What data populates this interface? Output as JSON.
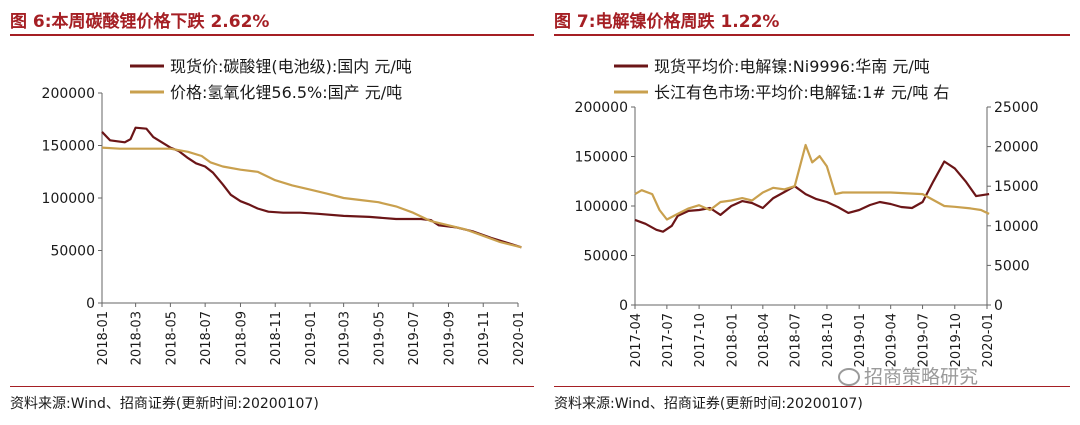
{
  "left": {
    "title": "图 6:本周碳酸锂价格下跌 2.62%",
    "source": "资料来源:Wind、招商证券(更新时间:20200107)"
  },
  "right": {
    "title": "图 7:电解镍价格周跌 1.22%",
    "source": "资料来源:Wind、招商证券(更新时间:20200107)"
  },
  "watermark": "招商策略研究",
  "chart_data": [
    {
      "type": "line",
      "title": "图 6:本周碳酸锂价格下跌 2.62%",
      "ylim": [
        0,
        200000
      ],
      "yticks": [
        0,
        50000,
        100000,
        150000,
        200000
      ],
      "xlim": [
        "2018-01",
        "2020-01"
      ],
      "xticks": [
        "2018-01",
        "2018-03",
        "2018-05",
        "2018-07",
        "2018-09",
        "2018-11",
        "2019-01",
        "2019-03",
        "2019-05",
        "2019-07",
        "2019-09",
        "2019-11",
        "2020-01"
      ],
      "legend_position": "top-left",
      "grid": false,
      "series": [
        {
          "name": "现货价:碳酸锂(电池级):国内 元/吨",
          "color": "#6b1517",
          "points": [
            [
              "2018-01-01",
              163000
            ],
            [
              "2018-01-15",
              155000
            ],
            [
              "2018-02-10",
              153000
            ],
            [
              "2018-02-20",
              156000
            ],
            [
              "2018-03-01",
              167000
            ],
            [
              "2018-03-20",
              166000
            ],
            [
              "2018-04-01",
              158000
            ],
            [
              "2018-05-01",
              148000
            ],
            [
              "2018-05-15",
              145000
            ],
            [
              "2018-06-01",
              138000
            ],
            [
              "2018-06-15",
              133000
            ],
            [
              "2018-07-01",
              130000
            ],
            [
              "2018-07-15",
              124000
            ],
            [
              "2018-08-01",
              113000
            ],
            [
              "2018-08-15",
              103000
            ],
            [
              "2018-09-01",
              97000
            ],
            [
              "2018-09-15",
              94000
            ],
            [
              "2018-10-01",
              90000
            ],
            [
              "2018-10-20",
              87000
            ],
            [
              "2018-11-15",
              86000
            ],
            [
              "2018-12-15",
              86000
            ],
            [
              "2019-01-15",
              85000
            ],
            [
              "2019-03-01",
              83000
            ],
            [
              "2019-04-15",
              82000
            ],
            [
              "2019-06-01",
              80000
            ],
            [
              "2019-07-15",
              80000
            ],
            [
              "2019-08-01",
              79000
            ],
            [
              "2019-08-15",
              74000
            ],
            [
              "2019-09-15",
              72000
            ],
            [
              "2019-10-15",
              68000
            ],
            [
              "2019-11-15",
              62000
            ],
            [
              "2019-12-15",
              57000
            ],
            [
              "2020-01-07",
              53000
            ]
          ]
        },
        {
          "name": "价格:氢氧化锂56.5%:国产 元/吨",
          "color": "#c9a04e",
          "points": [
            [
              "2018-01-01",
              148000
            ],
            [
              "2018-02-01",
              147000
            ],
            [
              "2018-05-01",
              147000
            ],
            [
              "2018-06-01",
              144000
            ],
            [
              "2018-06-25",
              140000
            ],
            [
              "2018-07-10",
              134000
            ],
            [
              "2018-08-01",
              130000
            ],
            [
              "2018-09-01",
              127000
            ],
            [
              "2018-10-01",
              125000
            ],
            [
              "2018-11-01",
              117000
            ],
            [
              "2018-12-01",
              112000
            ],
            [
              "2019-01-01",
              108000
            ],
            [
              "2019-02-01",
              104000
            ],
            [
              "2019-03-01",
              100000
            ],
            [
              "2019-04-01",
              98000
            ],
            [
              "2019-05-01",
              96000
            ],
            [
              "2019-06-01",
              92000
            ],
            [
              "2019-07-01",
              86000
            ],
            [
              "2019-08-01",
              78000
            ],
            [
              "2019-09-01",
              74000
            ],
            [
              "2019-10-01",
              70000
            ],
            [
              "2019-11-01",
              64000
            ],
            [
              "2019-12-01",
              58000
            ],
            [
              "2020-01-07",
              53000
            ]
          ]
        }
      ]
    },
    {
      "type": "line",
      "title": "图 7:电解镍价格周跌 1.22%",
      "ylim": [
        0,
        200000
      ],
      "yticks": [
        0,
        50000,
        100000,
        150000,
        200000
      ],
      "y2lim": [
        0,
        25000
      ],
      "y2ticks": [
        0,
        5000,
        10000,
        15000,
        20000,
        25000
      ],
      "xlim": [
        "2017-04",
        "2020-01"
      ],
      "xticks": [
        "2017-04",
        "2017-07",
        "2017-10",
        "2018-01",
        "2018-04",
        "2018-07",
        "2018-10",
        "2019-01",
        "2019-04",
        "2019-07",
        "2019-10",
        "2020-01"
      ],
      "legend_position": "top",
      "grid": false,
      "series": [
        {
          "name": "现货平均价:电解镍:Ni9996:华南 元/吨",
          "axis": "left",
          "color": "#6b1517",
          "points": [
            [
              "2017-04-01",
              86000
            ],
            [
              "2017-05-01",
              82000
            ],
            [
              "2017-06-01",
              76000
            ],
            [
              "2017-06-20",
              74000
            ],
            [
              "2017-07-15",
              80000
            ],
            [
              "2017-08-01",
              90000
            ],
            [
              "2017-09-01",
              95000
            ],
            [
              "2017-10-01",
              96000
            ],
            [
              "2017-11-01",
              98000
            ],
            [
              "2017-12-01",
              91000
            ],
            [
              "2018-01-01",
              100000
            ],
            [
              "2018-02-01",
              105000
            ],
            [
              "2018-03-01",
              103000
            ],
            [
              "2018-04-01",
              98000
            ],
            [
              "2018-05-01",
              108000
            ],
            [
              "2018-06-01",
              114000
            ],
            [
              "2018-07-01",
              120000
            ],
            [
              "2018-08-01",
              112000
            ],
            [
              "2018-09-01",
              107000
            ],
            [
              "2018-10-01",
              104000
            ],
            [
              "2018-11-01",
              99000
            ],
            [
              "2018-12-01",
              93000
            ],
            [
              "2019-01-01",
              96000
            ],
            [
              "2019-02-01",
              101000
            ],
            [
              "2019-03-01",
              104000
            ],
            [
              "2019-04-01",
              102000
            ],
            [
              "2019-05-01",
              99000
            ],
            [
              "2019-06-01",
              98000
            ],
            [
              "2019-07-01",
              104000
            ],
            [
              "2019-08-01",
              125000
            ],
            [
              "2019-09-01",
              145000
            ],
            [
              "2019-10-01",
              138000
            ],
            [
              "2019-11-01",
              125000
            ],
            [
              "2019-12-01",
              110000
            ],
            [
              "2020-01-07",
              112000
            ]
          ]
        },
        {
          "name": "长江有色市场:平均价:电解锰:1# 元/吨 右",
          "axis": "right",
          "color": "#c9a04e",
          "points": [
            [
              "2017-04-01",
              14000
            ],
            [
              "2017-04-20",
              14500
            ],
            [
              "2017-05-20",
              14000
            ],
            [
              "2017-06-10",
              12000
            ],
            [
              "2017-07-01",
              10800
            ],
            [
              "2017-08-01",
              11500
            ],
            [
              "2017-09-01",
              12200
            ],
            [
              "2017-10-01",
              12600
            ],
            [
              "2017-11-01",
              12000
            ],
            [
              "2017-12-01",
              13000
            ],
            [
              "2018-01-01",
              13200
            ],
            [
              "2018-02-01",
              13500
            ],
            [
              "2018-03-01",
              13200
            ],
            [
              "2018-04-01",
              14200
            ],
            [
              "2018-05-01",
              14800
            ],
            [
              "2018-06-01",
              14600
            ],
            [
              "2018-07-01",
              15000
            ],
            [
              "2018-08-01",
              20200
            ],
            [
              "2018-08-20",
              18000
            ],
            [
              "2018-09-10",
              18800
            ],
            [
              "2018-10-01",
              17500
            ],
            [
              "2018-10-25",
              14000
            ],
            [
              "2018-11-15",
              14200
            ],
            [
              "2019-01-01",
              14200
            ],
            [
              "2019-04-01",
              14200
            ],
            [
              "2019-07-01",
              14000
            ],
            [
              "2019-09-01",
              12500
            ],
            [
              "2019-10-01",
              12400
            ],
            [
              "2019-11-15",
              12200
            ],
            [
              "2019-12-15",
              12000
            ],
            [
              "2020-01-07",
              11500
            ]
          ]
        }
      ]
    }
  ]
}
